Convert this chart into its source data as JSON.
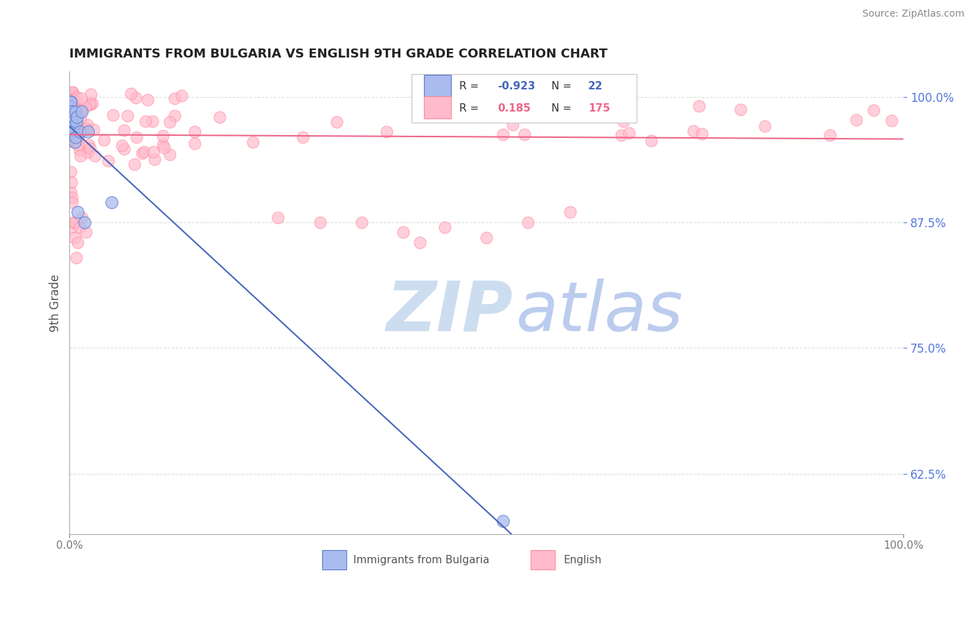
{
  "title": "IMMIGRANTS FROM BULGARIA VS ENGLISH 9TH GRADE CORRELATION CHART",
  "source_text": "Source: ZipAtlas.com",
  "ylabel": "9th Grade",
  "xlim": [
    0.0,
    1.0
  ],
  "ylim": [
    0.565,
    1.025
  ],
  "x_tick_labels": [
    "0.0%",
    "100.0%"
  ],
  "y_tick_labels": [
    "62.5%",
    "75.0%",
    "87.5%",
    "100.0%"
  ],
  "y_tick_values": [
    0.625,
    0.75,
    0.875,
    1.0
  ],
  "legend_label1": "Immigrants from Bulgaria",
  "legend_label2": "English",
  "r1": -0.923,
  "n1": 22,
  "r2": 0.185,
  "n2": 175,
  "blue_fill": "#AABBEE",
  "blue_edge": "#5577CC",
  "pink_fill": "#FFBBCC",
  "pink_edge": "#FF8899",
  "blue_line": "#4466BB",
  "pink_line": "#EE6688",
  "title_color": "#222222",
  "source_color": "#888888",
  "ylabel_color": "#555555",
  "tick_color_y": "#5577DD",
  "tick_color_x": "#777777",
  "grid_color": "#DDDDDD",
  "watermark_zip_color": "#CCDDF0",
  "watermark_atlas_color": "#BBCCEE",
  "legend_box_edge": "#CCCCCC",
  "blue_scatter_x": [
    0.001,
    0.001,
    0.0015,
    0.002,
    0.002,
    0.0025,
    0.003,
    0.003,
    0.004,
    0.005,
    0.006,
    0.007,
    0.007,
    0.008,
    0.009,
    0.01,
    0.012,
    0.015,
    0.018,
    0.022,
    0.05,
    0.52
  ],
  "blue_scatter_y": [
    0.995,
    0.99,
    0.995,
    0.985,
    0.975,
    0.985,
    0.975,
    0.97,
    0.97,
    0.965,
    0.955,
    0.985,
    0.96,
    0.975,
    0.98,
    0.885,
    0.965,
    0.985,
    0.875,
    0.965,
    0.895,
    0.578
  ]
}
